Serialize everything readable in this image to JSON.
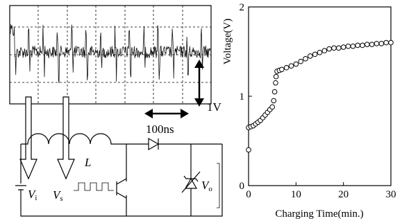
{
  "chart_data": {
    "type": "line",
    "y_label": "Voltage(V)",
    "x_label": "Charging Time(min.)",
    "x": [
      0,
      0,
      0.5,
      1,
      1.5,
      2,
      2.5,
      3,
      3.5,
      4,
      4.5,
      5,
      5.3,
      5.5,
      5.7,
      5.8,
      6,
      6.5,
      7,
      8,
      9,
      10,
      11,
      12,
      13,
      14,
      15,
      16,
      17,
      18,
      19,
      20,
      21,
      22,
      23,
      24,
      25,
      26,
      27,
      28,
      29,
      30
    ],
    "values": [
      0.4,
      0.65,
      0.66,
      0.67,
      0.69,
      0.71,
      0.73,
      0.76,
      0.79,
      0.82,
      0.85,
      0.88,
      0.95,
      1.05,
      1.15,
      1.22,
      1.28,
      1.29,
      1.3,
      1.32,
      1.34,
      1.36,
      1.39,
      1.42,
      1.45,
      1.47,
      1.49,
      1.51,
      1.53,
      1.54,
      1.54,
      1.55,
      1.56,
      1.56,
      1.57,
      1.57,
      1.58,
      1.58,
      1.59,
      1.59,
      1.6,
      1.6
    ],
    "color": "#000000",
    "marker": "open-circle",
    "xlim": [
      0,
      30
    ],
    "xticks": [
      0,
      10,
      20,
      30
    ],
    "ylim": [
      0,
      2
    ],
    "yticks": [
      0,
      1,
      2
    ]
  },
  "diagram": {
    "scope_volt_scale": "1V",
    "scope_time_scale": "100ns",
    "inductor": "L",
    "input_voltage": {
      "main": "V",
      "sub": "i"
    },
    "switch_voltage": {
      "main": "V",
      "sub": "s"
    },
    "output_voltage": {
      "main": "V",
      "sub": "o"
    }
  }
}
